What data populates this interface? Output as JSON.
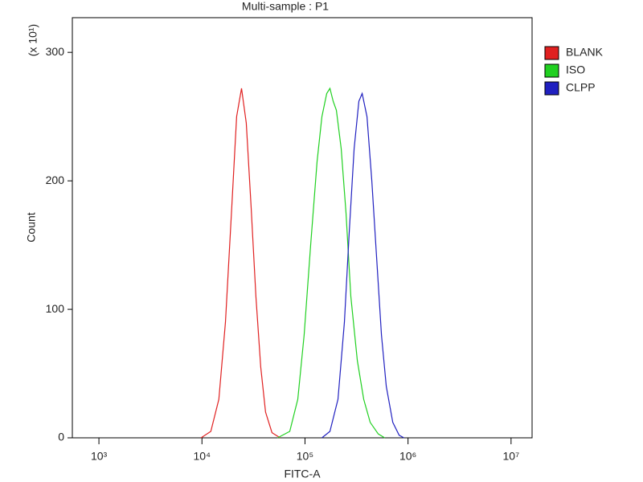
{
  "chart_data": {
    "type": "line",
    "title": "Multi-sample : P1",
    "x_label": "FITC-A",
    "y_label": "Count",
    "y_multiplier": "(x 10¹)",
    "xscale": "log",
    "xlim": [
      552,
      16000000
    ],
    "xticks": [
      {
        "value": 1000,
        "label": "10³"
      },
      {
        "value": 10000,
        "label": "10⁴"
      },
      {
        "value": 100000,
        "label": "10⁵"
      },
      {
        "value": 1000000,
        "label": "10⁶"
      },
      {
        "value": 10000000,
        "label": "10⁷"
      }
    ],
    "ylim": [
      0,
      327
    ],
    "yticks": [
      0,
      100,
      200,
      300
    ],
    "legend": "right-top",
    "series": [
      {
        "name": "BLANK",
        "color": "#e02020",
        "x": [
          9800,
          12200,
          14600,
          16900,
          19500,
          21700,
          24200,
          26900,
          30000,
          33400,
          37200,
          41400,
          47800,
          57300
        ],
        "values": [
          0,
          5,
          30,
          90,
          180,
          250,
          272,
          245,
          180,
          110,
          55,
          20,
          4,
          0
        ]
      },
      {
        "name": "ISO",
        "color": "#20d020",
        "x": [
          54200,
          71100,
          85100,
          98200,
          113500,
          131000,
          146000,
          162600,
          174700,
          187600,
          201700,
          224700,
          250300,
          278800,
          322000,
          371700,
          429300,
          514000,
          593300
        ],
        "values": [
          0,
          5,
          30,
          80,
          150,
          215,
          250,
          268,
          272,
          262,
          255,
          225,
          175,
          110,
          60,
          30,
          12,
          3,
          0
        ]
      },
      {
        "name": "CLPP",
        "color": "#2020c0",
        "x": [
          146000,
          174700,
          209100,
          241400,
          269000,
          299800,
          333700,
          358800,
          399600,
          445000,
          495700,
          552300,
          615300,
          711400,
          820700,
          914100
        ],
        "values": [
          0,
          5,
          30,
          90,
          160,
          225,
          262,
          268,
          250,
          200,
          140,
          80,
          40,
          12,
          2,
          0
        ]
      }
    ]
  }
}
